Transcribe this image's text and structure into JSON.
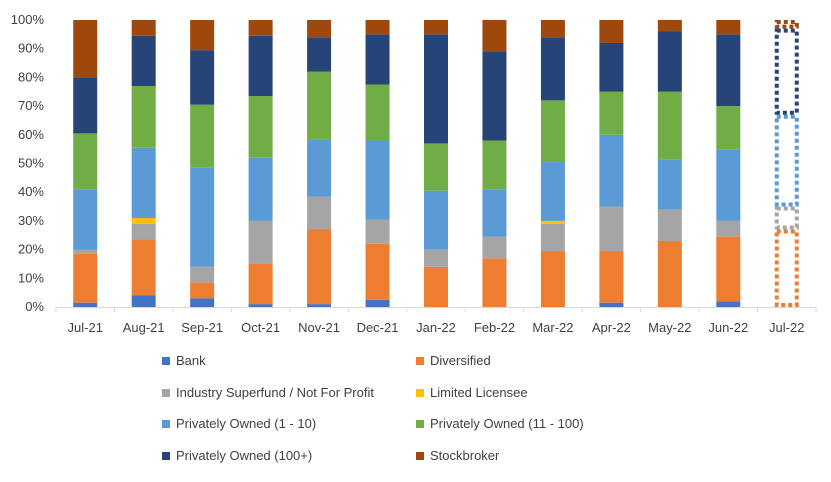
{
  "chart_data": {
    "type": "bar",
    "stacked": true,
    "percent": true,
    "categories": [
      "Jul-21",
      "Aug-21",
      "Sep-21",
      "Oct-21",
      "Nov-21",
      "Dec-21",
      "Jan-22",
      "Feb-22",
      "Mar-22",
      "Apr-22",
      "May-22",
      "Jun-22",
      "Jul-22"
    ],
    "ylim": [
      0,
      100
    ],
    "yticks": [
      "0%",
      "10%",
      "20%",
      "30%",
      "40%",
      "50%",
      "60%",
      "70%",
      "80%",
      "90%",
      "100%"
    ],
    "grid": false,
    "legend_position": "bottom",
    "dashed_last_category": true,
    "series": [
      {
        "name": "Bank",
        "color": "#4472C4",
        "values": [
          1.5,
          4,
          3,
          1,
          1,
          2.5,
          0,
          0,
          0,
          1.5,
          0,
          2,
          0
        ]
      },
      {
        "name": "Diversified",
        "color": "#ED7D31",
        "values": [
          17,
          19.5,
          5.5,
          14,
          26,
          19.5,
          14,
          17,
          19.5,
          18,
          23,
          22.5,
          27
        ]
      },
      {
        "name": "Industry Superfund / Not For Profit",
        "color": "#A5A5A5",
        "values": [
          1.5,
          5.5,
          5.5,
          15,
          11.5,
          8.5,
          6,
          7.5,
          9.5,
          15.5,
          11,
          5.5,
          8
        ]
      },
      {
        "name": "Limited Licensee",
        "color": "#FFC000",
        "values": [
          0,
          2,
          0,
          0,
          0,
          0,
          0,
          0,
          1,
          0,
          0,
          0,
          0
        ]
      },
      {
        "name": "Privately Owned (1 - 10)",
        "color": "#5B9BD5",
        "values": [
          21,
          24.5,
          34.5,
          22,
          20,
          27.5,
          20.5,
          16.5,
          20.5,
          25,
          17.5,
          25,
          32
        ]
      },
      {
        "name": "Privately Owned (11 - 100)",
        "color": "#70AD47",
        "values": [
          19.5,
          21.5,
          22,
          21.5,
          23.5,
          19.5,
          16.5,
          17,
          21.5,
          15,
          23.5,
          15,
          0
        ]
      },
      {
        "name": "Privately Owned (100+)",
        "color": "#264478",
        "values": [
          19.5,
          17.5,
          19,
          21,
          12,
          17.5,
          38,
          31,
          22,
          17,
          21,
          25,
          30
        ]
      },
      {
        "name": "Stockbroker",
        "color": "#9E480E",
        "values": [
          20,
          5.5,
          10.5,
          5.5,
          6,
          5,
          5,
          11,
          6,
          8,
          4,
          5,
          3
        ]
      }
    ]
  }
}
